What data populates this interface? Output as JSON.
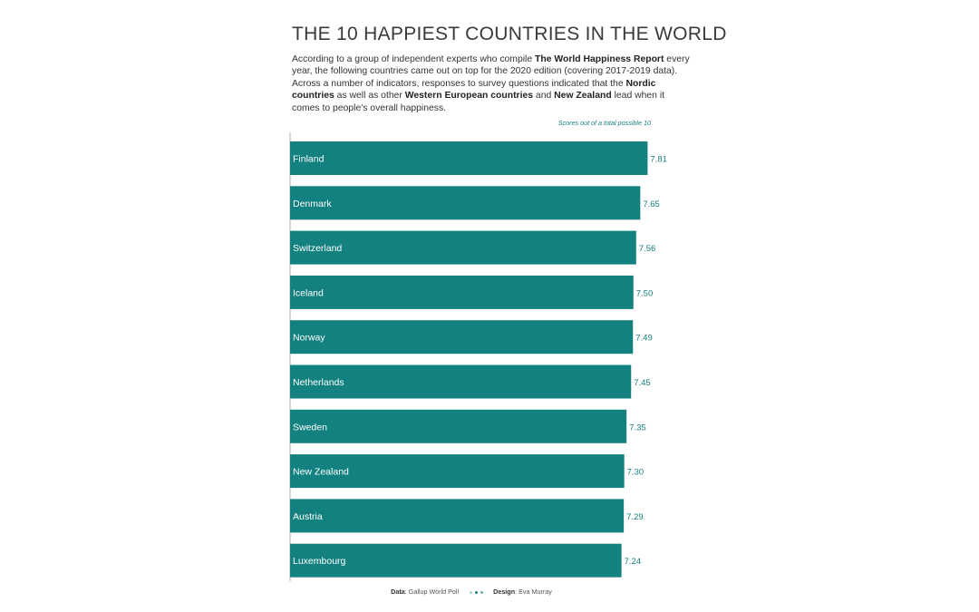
{
  "title": "THE 10 HAPPIEST COUNTRIES IN THE WORLD",
  "intro": {
    "p1": "According to a group of independent experts who compile ",
    "b1": "The World Happiness Report",
    "p2": " every year, the following countries came out on top for the 2020 edition (covering 2017-2019 data). Across a number of indicators, responses to survey questions indicated that the ",
    "b2": "Nordic countries",
    "p3": " as well as other ",
    "b3": "Western European countries",
    "p4": " and ",
    "b4": "New Zealand",
    "p5": " lead when it comes to people's overall happiness."
  },
  "score_note": "Scores out of a total possible 10",
  "footer": {
    "data_label": "Data",
    "data_value": ": Gallup World Poll",
    "design_label": "Design",
    "design_value": ": Eva Murray",
    "dot_colors": [
      "#a9cfcf",
      "#1a8080",
      "#6fb0b0"
    ]
  },
  "colors": {
    "bar": "#12817f",
    "value_text": "#1a8080",
    "label_text": "#ffffff",
    "axis": "#9a9a9a"
  },
  "chart_data": {
    "type": "bar",
    "orientation": "horizontal",
    "categories": [
      "Finland",
      "Denmark",
      "Switzerland",
      "Iceland",
      "Norway",
      "Netherlands",
      "Sweden",
      "New Zealand",
      "Austria",
      "Luxembourg"
    ],
    "values": [
      7.81,
      7.65,
      7.56,
      7.5,
      7.49,
      7.45,
      7.35,
      7.3,
      7.29,
      7.24
    ],
    "value_labels": [
      "7.81",
      "7.65",
      "7.56",
      "7.50",
      "7.49",
      "7.45",
      "7.35",
      "7.30",
      "7.29",
      "7.24"
    ],
    "xlim": [
      0,
      10
    ],
    "grid": false
  }
}
